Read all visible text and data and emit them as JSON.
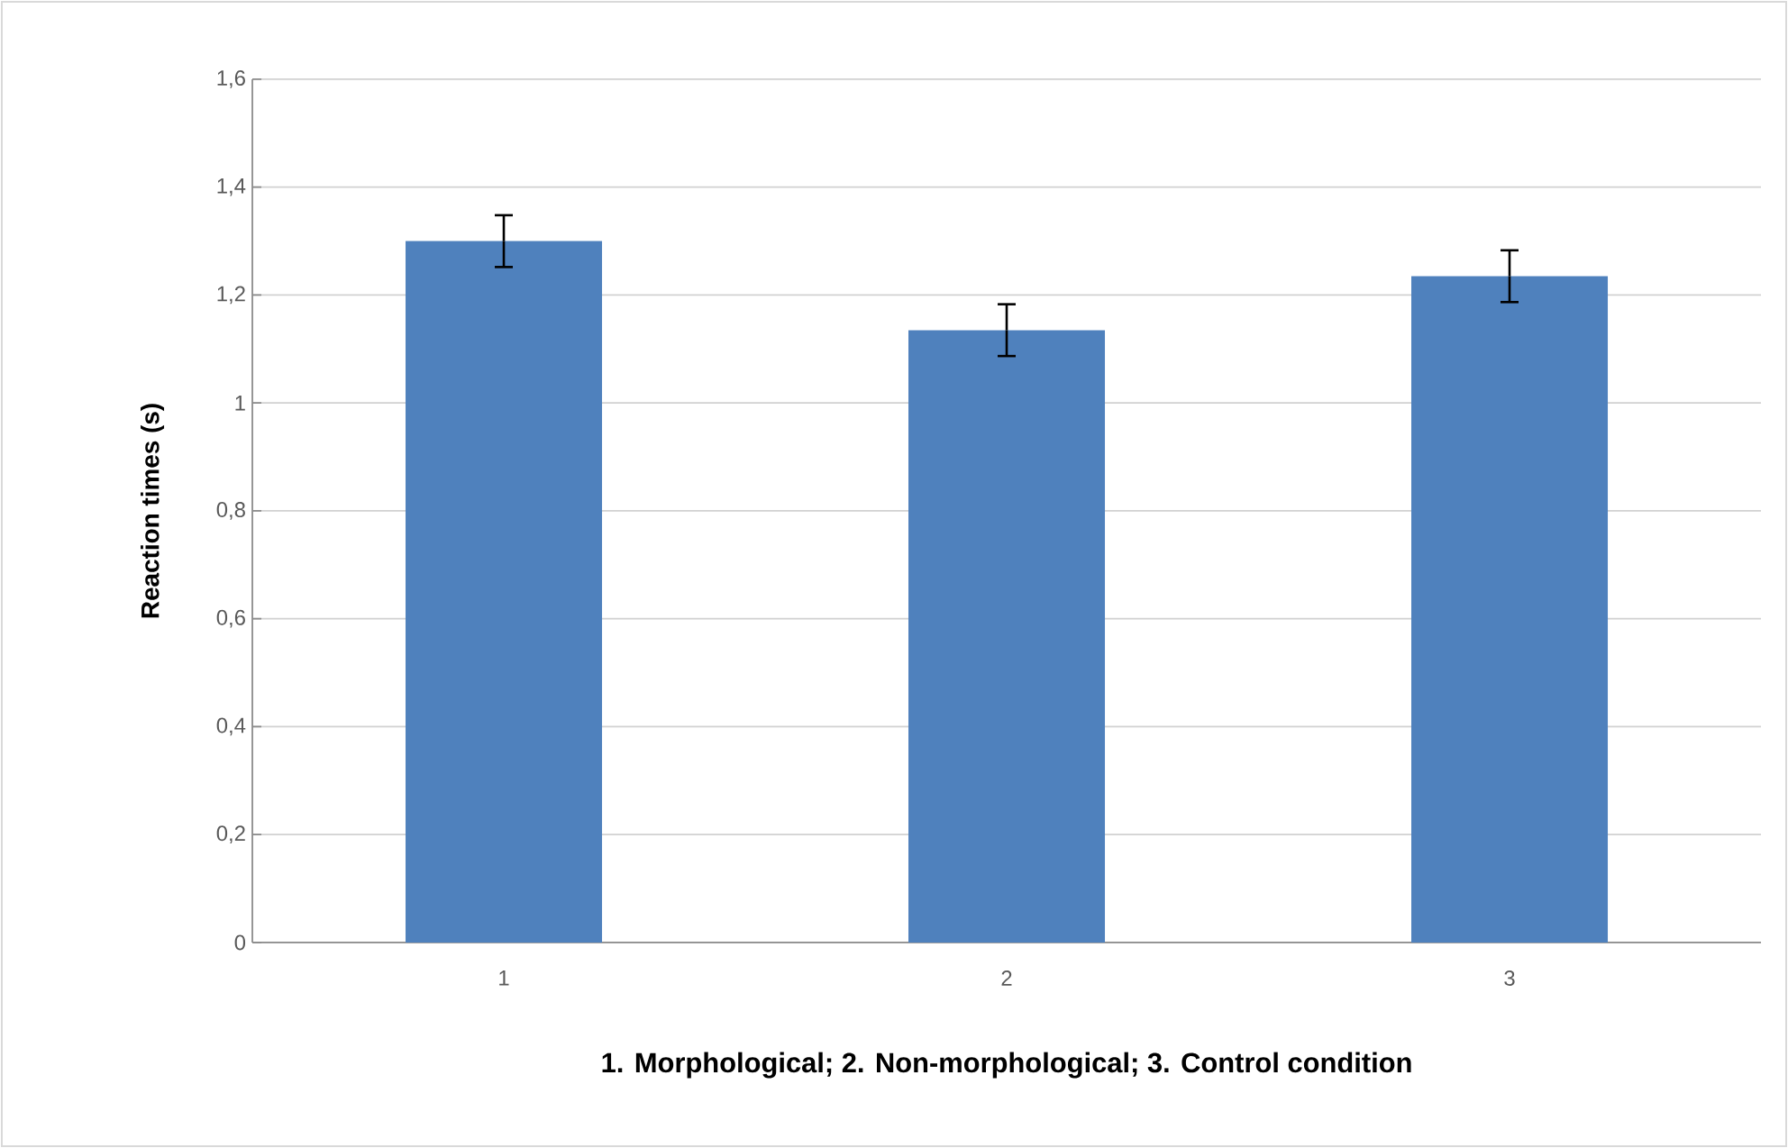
{
  "chart_data": {
    "type": "bar",
    "xlabel": "1. Morphological; 2. Non-morphological; 3. Control condition",
    "ylabel": "Reaction times  (s)",
    "categories": [
      "1",
      "2",
      "3"
    ],
    "values": [
      1.3,
      1.135,
      1.235
    ],
    "errors": [
      0.048,
      0.048,
      0.048
    ],
    "color": "#4f81bd",
    "ylim": [
      0,
      1.6
    ],
    "yticks": [
      0,
      {
        "value": 0.2,
        "label": "0,2"
      },
      {
        "value": 0.4,
        "label": "0,4"
      },
      {
        "value": 0.6,
        "label": "0,6"
      },
      {
        "value": 0.8,
        "label": "0,8"
      },
      1,
      {
        "value": 1.2,
        "label": "1,2"
      },
      {
        "value": 1.4,
        "label": "1,4"
      },
      {
        "value": 1.6,
        "label": "1,6"
      }
    ],
    "grid": "y"
  }
}
